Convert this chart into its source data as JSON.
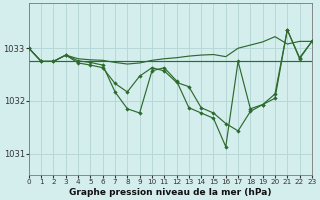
{
  "title": "Graphe pression niveau de la mer (hPa)",
  "bg_color": "#d4eeee",
  "grid_color": "#b8d8d8",
  "line_color": "#2d6a2d",
  "xlim": [
    0,
    23
  ],
  "ylim": [
    1030.6,
    1033.85
  ],
  "yticks": [
    1031,
    1032,
    1033
  ],
  "xticks": [
    0,
    1,
    2,
    3,
    4,
    5,
    6,
    7,
    8,
    9,
    10,
    11,
    12,
    13,
    14,
    15,
    16,
    17,
    18,
    19,
    20,
    21,
    22,
    23
  ],
  "s_flat": [
    1032.75,
    1032.75,
    1032.75,
    1032.75,
    1032.75,
    1032.75,
    1032.75,
    1032.75,
    1032.75,
    1032.75,
    1032.75,
    1032.75,
    1032.75,
    1032.75,
    1032.75,
    1032.75,
    1032.75,
    1032.75,
    1032.75,
    1032.75,
    1032.75,
    1032.75,
    1032.75,
    1032.75
  ],
  "s_trend": [
    1033.0,
    1032.75,
    1032.75,
    1032.87,
    1032.8,
    1032.78,
    1032.77,
    1032.73,
    1032.7,
    1032.72,
    1032.77,
    1032.8,
    1032.82,
    1032.85,
    1032.87,
    1032.88,
    1032.84,
    1033.0,
    1033.06,
    1033.12,
    1033.22,
    1033.08,
    1033.13,
    1033.13
  ],
  "s_main": [
    1033.0,
    1032.75,
    1032.75,
    1032.87,
    1032.72,
    1032.68,
    1032.63,
    1032.33,
    1032.17,
    1032.47,
    1032.63,
    1032.57,
    1032.35,
    1032.27,
    1031.87,
    1031.77,
    1031.57,
    1031.43,
    1031.8,
    1031.93,
    1032.05,
    1033.35,
    1032.8,
    1033.13
  ],
  "s_extra": [
    1033.0,
    1032.75,
    1032.75,
    1032.87,
    1032.76,
    1032.73,
    1032.68,
    1032.17,
    1031.85,
    1031.77,
    1032.57,
    1032.63,
    1032.38,
    1031.87,
    1031.77,
    1031.67,
    1031.13,
    1032.75,
    1031.85,
    1031.93,
    1032.13,
    1033.35,
    1032.82,
    1033.13
  ]
}
